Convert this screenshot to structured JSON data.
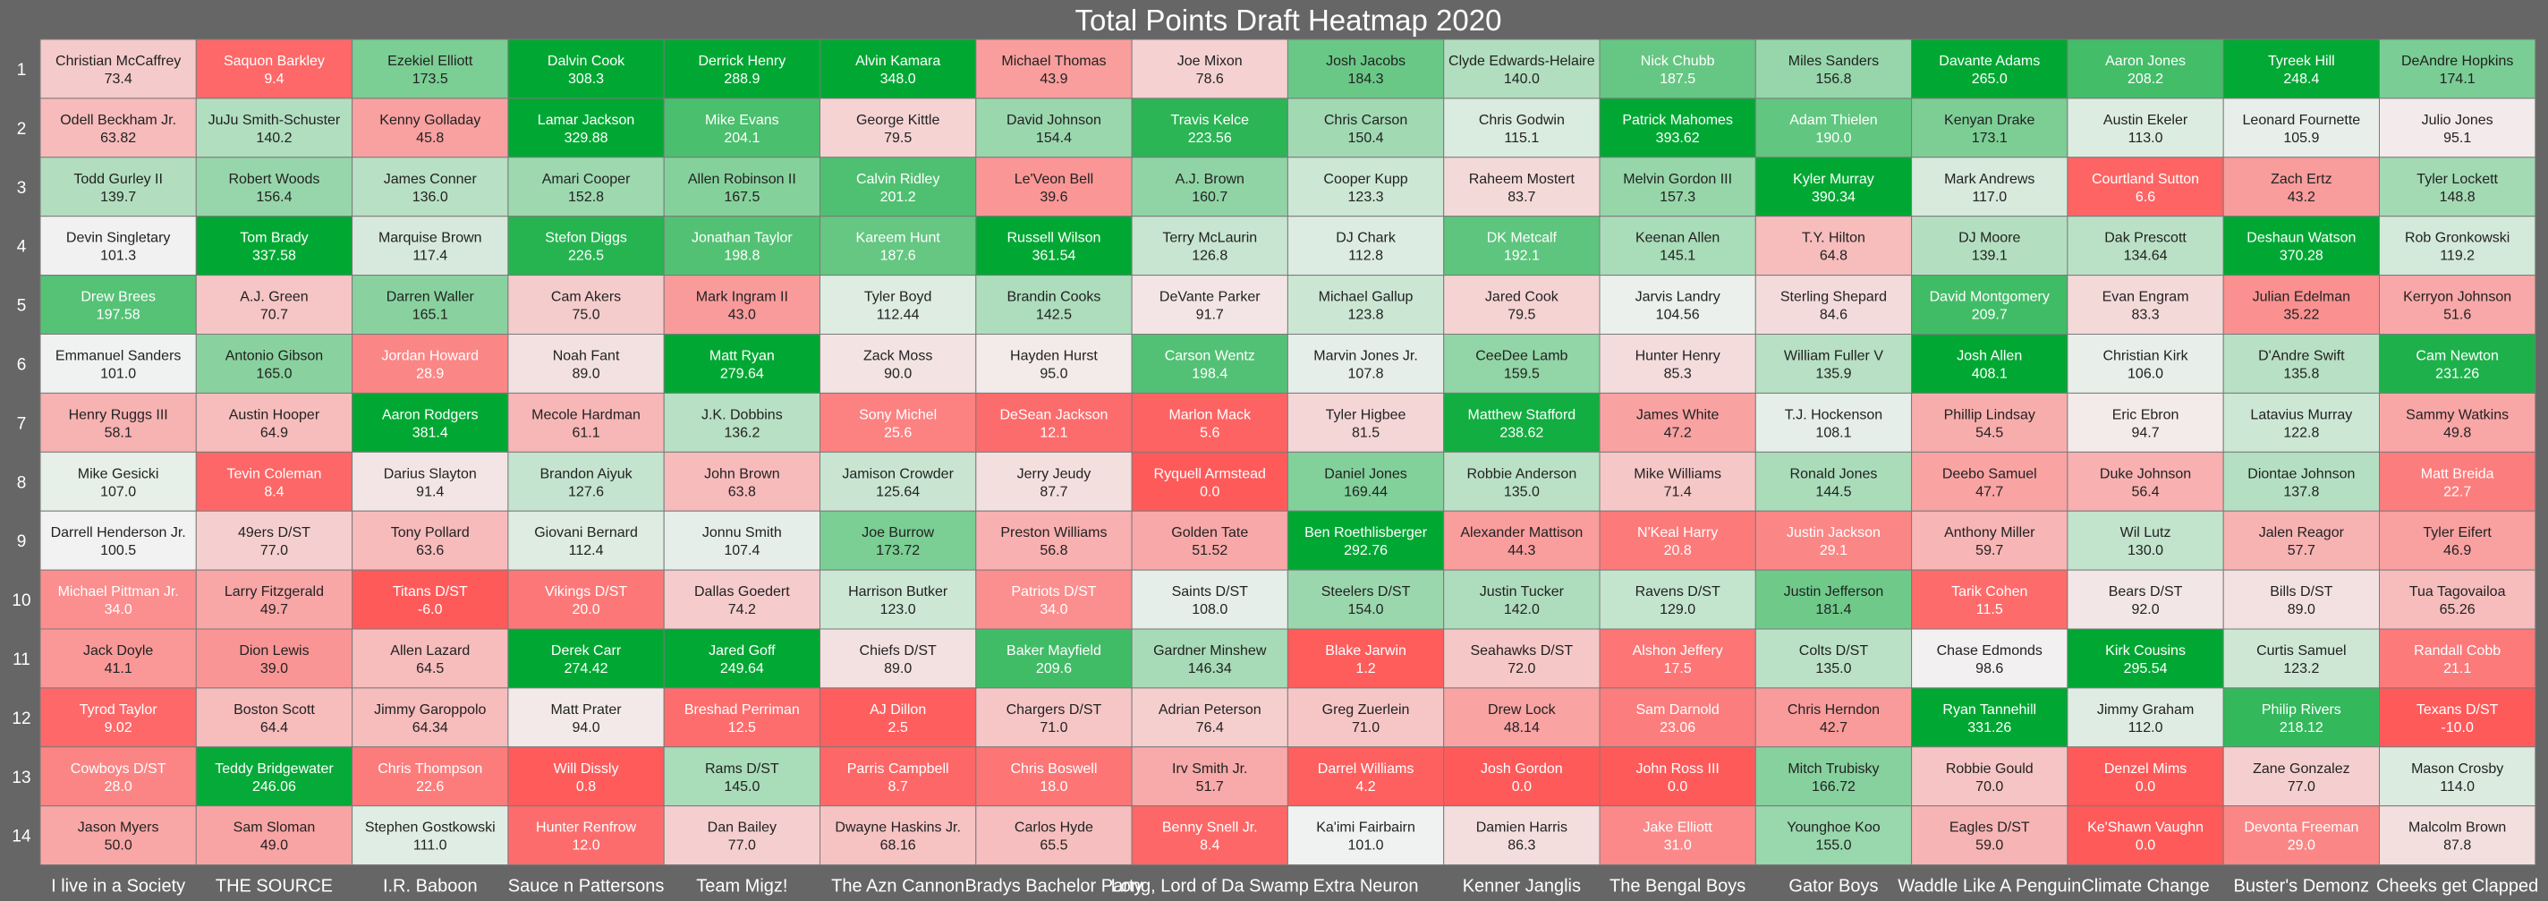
{
  "chart_data": {
    "type": "heatmap",
    "title": "Total Points Draft Heatmap 2020",
    "rows": [
      "1",
      "2",
      "3",
      "4",
      "5",
      "6",
      "7",
      "8",
      "9",
      "10",
      "11",
      "12",
      "13",
      "14"
    ],
    "columns": [
      "I live in a Society",
      "THE SOURCE",
      "I.R. Baboon",
      "Sauce n Pattersons",
      "Team Migz!",
      "The Azn Cannon",
      "Bradys Bachelor Party",
      "Long, Lord of Da Swamp",
      "Extra  Neuron",
      "Kenner Janglis",
      "The Bengal  Boys",
      "Gator  Boys",
      "Waddle Like A Penguin",
      "Climate Change",
      "Buster's Demonz",
      "Cheeks get  Clapped"
    ],
    "color_scale": {
      "low": "#ff5a5a",
      "mid": "#f2f2f2",
      "high": "#00a833",
      "vmin": 0,
      "vmid": 100,
      "vmax": 250
    },
    "cells": [
      [
        [
          "Christian McCaffrey",
          "73.4"
        ],
        [
          "Saquon Barkley",
          "9.4"
        ],
        [
          "Ezekiel Elliott",
          "173.5"
        ],
        [
          "Dalvin Cook",
          "308.3"
        ],
        [
          "Derrick Henry",
          "288.9"
        ],
        [
          "Alvin Kamara",
          "348.0"
        ],
        [
          "Michael Thomas",
          "43.9"
        ],
        [
          "Joe Mixon",
          "78.6"
        ],
        [
          "Josh Jacobs",
          "184.3"
        ],
        [
          "Clyde Edwards-Helaire",
          "140.0"
        ],
        [
          "Nick Chubb",
          "187.5"
        ],
        [
          "Miles Sanders",
          "156.8"
        ],
        [
          "Davante Adams",
          "265.0"
        ],
        [
          "Aaron Jones",
          "208.2"
        ],
        [
          "Tyreek Hill",
          "248.4"
        ],
        [
          "DeAndre Hopkins",
          "174.1"
        ]
      ],
      [
        [
          "Odell Beckham Jr.",
          "63.82"
        ],
        [
          "JuJu Smith-Schuster",
          "140.2"
        ],
        [
          "Kenny Golladay",
          "45.8"
        ],
        [
          "Lamar Jackson",
          "329.88"
        ],
        [
          "Mike Evans",
          "204.1"
        ],
        [
          "George Kittle",
          "79.5"
        ],
        [
          "David Johnson",
          "154.4"
        ],
        [
          "Travis Kelce",
          "223.56"
        ],
        [
          "Chris Carson",
          "150.4"
        ],
        [
          "Chris Godwin",
          "115.1"
        ],
        [
          "Patrick Mahomes",
          "393.62"
        ],
        [
          "Adam Thielen",
          "190.0"
        ],
        [
          "Kenyan Drake",
          "173.1"
        ],
        [
          "Austin Ekeler",
          "113.0"
        ],
        [
          "Leonard Fournette",
          "105.9"
        ],
        [
          "Julio Jones",
          "95.1"
        ]
      ],
      [
        [
          "Todd Gurley II",
          "139.7"
        ],
        [
          "Robert Woods",
          "156.4"
        ],
        [
          "James Conner",
          "136.0"
        ],
        [
          "Amari Cooper",
          "152.8"
        ],
        [
          "Allen Robinson II",
          "167.5"
        ],
        [
          "Calvin Ridley",
          "201.2"
        ],
        [
          "Le'Veon Bell",
          "39.6"
        ],
        [
          "A.J. Brown",
          "160.7"
        ],
        [
          "Cooper Kupp",
          "123.3"
        ],
        [
          "Raheem Mostert",
          "83.7"
        ],
        [
          "Melvin Gordon III",
          "157.3"
        ],
        [
          "Kyler Murray",
          "390.34"
        ],
        [
          "Mark Andrews",
          "117.0"
        ],
        [
          "Courtland Sutton",
          "6.6"
        ],
        [
          "Zach Ertz",
          "43.2"
        ],
        [
          "Tyler Lockett",
          "148.8"
        ]
      ],
      [
        [
          "Devin Singletary",
          "101.3"
        ],
        [
          "Tom Brady",
          "337.58"
        ],
        [
          "Marquise Brown",
          "117.4"
        ],
        [
          "Stefon Diggs",
          "226.5"
        ],
        [
          "Jonathan Taylor",
          "198.8"
        ],
        [
          "Kareem Hunt",
          "187.6"
        ],
        [
          "Russell Wilson",
          "361.54"
        ],
        [
          "Terry McLaurin",
          "126.8"
        ],
        [
          "DJ Chark",
          "112.8"
        ],
        [
          "DK Metcalf",
          "192.1"
        ],
        [
          "Keenan Allen",
          "145.1"
        ],
        [
          "T.Y. Hilton",
          "64.8"
        ],
        [
          "DJ Moore",
          "139.1"
        ],
        [
          "Dak Prescott",
          "134.64"
        ],
        [
          "Deshaun Watson",
          "370.28"
        ],
        [
          "Rob Gronkowski",
          "119.2"
        ]
      ],
      [
        [
          "Drew Brees",
          "197.58"
        ],
        [
          "A.J. Green",
          "70.7"
        ],
        [
          "Darren Waller",
          "165.1"
        ],
        [
          "Cam Akers",
          "75.0"
        ],
        [
          "Mark Ingram II",
          "43.0"
        ],
        [
          "Tyler Boyd",
          "112.44"
        ],
        [
          "Brandin Cooks",
          "142.5"
        ],
        [
          "DeVante Parker",
          "91.7"
        ],
        [
          "Michael Gallup",
          "123.8"
        ],
        [
          "Jared Cook",
          "79.5"
        ],
        [
          "Jarvis Landry",
          "104.56"
        ],
        [
          "Sterling Shepard",
          "84.6"
        ],
        [
          "David Montgomery",
          "209.7"
        ],
        [
          "Evan Engram",
          "83.3"
        ],
        [
          "Julian Edelman",
          "35.22"
        ],
        [
          "Kerryon Johnson",
          "51.6"
        ]
      ],
      [
        [
          "Emmanuel Sanders",
          "101.0"
        ],
        [
          "Antonio Gibson",
          "165.0"
        ],
        [
          "Jordan Howard",
          "28.9"
        ],
        [
          "Noah Fant",
          "89.0"
        ],
        [
          "Matt Ryan",
          "279.64"
        ],
        [
          "Zack Moss",
          "90.0"
        ],
        [
          "Hayden Hurst",
          "95.0"
        ],
        [
          "Carson Wentz",
          "198.4"
        ],
        [
          "Marvin Jones Jr.",
          "107.8"
        ],
        [
          "CeeDee Lamb",
          "159.5"
        ],
        [
          "Hunter Henry",
          "85.3"
        ],
        [
          "William Fuller V",
          "135.9"
        ],
        [
          "Josh Allen",
          "408.1"
        ],
        [
          "Christian Kirk",
          "106.0"
        ],
        [
          "D'Andre Swift",
          "135.8"
        ],
        [
          "Cam Newton",
          "231.26"
        ]
      ],
      [
        [
          "Henry Ruggs III",
          "58.1"
        ],
        [
          "Austin Hooper",
          "64.9"
        ],
        [
          "Aaron Rodgers",
          "381.4"
        ],
        [
          "Mecole Hardman",
          "61.1"
        ],
        [
          "J.K. Dobbins",
          "136.2"
        ],
        [
          "Sony Michel",
          "25.6"
        ],
        [
          "DeSean Jackson",
          "12.1"
        ],
        [
          "Marlon Mack",
          "5.6"
        ],
        [
          "Tyler Higbee",
          "81.5"
        ],
        [
          "Matthew Stafford",
          "238.62"
        ],
        [
          "James White",
          "47.2"
        ],
        [
          "T.J. Hockenson",
          "108.1"
        ],
        [
          "Phillip Lindsay",
          "54.5"
        ],
        [
          "Eric Ebron",
          "94.7"
        ],
        [
          "Latavius Murray",
          "122.8"
        ],
        [
          "Sammy Watkins",
          "49.8"
        ]
      ],
      [
        [
          "Mike Gesicki",
          "107.0"
        ],
        [
          "Tevin Coleman",
          "8.4"
        ],
        [
          "Darius Slayton",
          "91.4"
        ],
        [
          "Brandon Aiyuk",
          "127.6"
        ],
        [
          "John Brown",
          "63.8"
        ],
        [
          "Jamison Crowder",
          "125.64"
        ],
        [
          "Jerry Jeudy",
          "87.7"
        ],
        [
          "Ryquell Armstead",
          "0.0"
        ],
        [
          "Daniel Jones",
          "169.44"
        ],
        [
          "Robbie Anderson",
          "135.0"
        ],
        [
          "Mike Williams",
          "71.4"
        ],
        [
          "Ronald Jones",
          "144.5"
        ],
        [
          "Deebo Samuel",
          "47.7"
        ],
        [
          "Duke Johnson",
          "56.4"
        ],
        [
          "Diontae Johnson",
          "137.8"
        ],
        [
          "Matt Breida",
          "22.7"
        ]
      ],
      [
        [
          "Darrell Henderson Jr.",
          "100.5"
        ],
        [
          "49ers D/ST",
          "77.0"
        ],
        [
          "Tony Pollard",
          "63.6"
        ],
        [
          "Giovani Bernard",
          "112.4"
        ],
        [
          "Jonnu Smith",
          "107.4"
        ],
        [
          "Joe Burrow",
          "173.72"
        ],
        [
          "Preston Williams",
          "56.8"
        ],
        [
          "Golden Tate",
          "51.52"
        ],
        [
          "Ben Roethlisberger",
          "292.76"
        ],
        [
          "Alexander Mattison",
          "44.3"
        ],
        [
          "N'Keal Harry",
          "20.8"
        ],
        [
          "Justin Jackson",
          "29.1"
        ],
        [
          "Anthony Miller",
          "59.7"
        ],
        [
          "Wil Lutz",
          "130.0"
        ],
        [
          "Jalen Reagor",
          "57.7"
        ],
        [
          "Tyler Eifert",
          "46.9"
        ]
      ],
      [
        [
          "Michael Pittman Jr.",
          "34.0"
        ],
        [
          "Larry Fitzgerald",
          "49.7"
        ],
        [
          "Titans D/ST",
          "-6.0"
        ],
        [
          "Vikings D/ST",
          "20.0"
        ],
        [
          "Dallas Goedert",
          "74.2"
        ],
        [
          "Harrison Butker",
          "123.0"
        ],
        [
          "Patriots D/ST",
          "34.0"
        ],
        [
          "Saints D/ST",
          "108.0"
        ],
        [
          "Steelers D/ST",
          "154.0"
        ],
        [
          "Justin Tucker",
          "142.0"
        ],
        [
          "Ravens D/ST",
          "129.0"
        ],
        [
          "Justin Jefferson",
          "181.4"
        ],
        [
          "Tarik Cohen",
          "11.5"
        ],
        [
          "Bears D/ST",
          "92.0"
        ],
        [
          "Bills D/ST",
          "89.0"
        ],
        [
          "Tua Tagovailoa",
          "65.26"
        ]
      ],
      [
        [
          "Jack Doyle",
          "41.1"
        ],
        [
          "Dion Lewis",
          "39.0"
        ],
        [
          "Allen Lazard",
          "64.5"
        ],
        [
          "Derek Carr",
          "274.42"
        ],
        [
          "Jared Goff",
          "249.64"
        ],
        [
          "Chiefs D/ST",
          "89.0"
        ],
        [
          "Baker Mayfield",
          "209.6"
        ],
        [
          "Gardner Minshew",
          "146.34"
        ],
        [
          "Blake Jarwin",
          "1.2"
        ],
        [
          "Seahawks D/ST",
          "72.0"
        ],
        [
          "Alshon Jeffery",
          "17.5"
        ],
        [
          "Colts D/ST",
          "135.0"
        ],
        [
          "Chase Edmonds",
          "98.6"
        ],
        [
          "Kirk Cousins",
          "295.54"
        ],
        [
          "Curtis Samuel",
          "123.2"
        ],
        [
          "Randall Cobb",
          "21.1"
        ]
      ],
      [
        [
          "Tyrod Taylor",
          "9.02"
        ],
        [
          "Boston Scott",
          "64.4"
        ],
        [
          "Jimmy Garoppolo",
          "64.34"
        ],
        [
          "Matt Prater",
          "94.0"
        ],
        [
          "Breshad Perriman",
          "12.5"
        ],
        [
          "AJ Dillon",
          "2.5"
        ],
        [
          "Chargers D/ST",
          "71.0"
        ],
        [
          "Adrian Peterson",
          "76.4"
        ],
        [
          "Greg Zuerlein",
          "71.0"
        ],
        [
          "Drew Lock",
          "48.14"
        ],
        [
          "Sam Darnold",
          "23.06"
        ],
        [
          "Chris Herndon",
          "42.7"
        ],
        [
          "Ryan Tannehill",
          "331.26"
        ],
        [
          "Jimmy Graham",
          "112.0"
        ],
        [
          "Philip Rivers",
          "218.12"
        ],
        [
          "Texans D/ST",
          "-10.0"
        ]
      ],
      [
        [
          "Cowboys D/ST",
          "28.0"
        ],
        [
          "Teddy Bridgewater",
          "246.06"
        ],
        [
          "Chris Thompson",
          "22.6"
        ],
        [
          "Will Dissly",
          "0.8"
        ],
        [
          "Rams D/ST",
          "145.0"
        ],
        [
          "Parris Campbell",
          "8.7"
        ],
        [
          "Chris Boswell",
          "18.0"
        ],
        [
          "Irv Smith Jr.",
          "51.7"
        ],
        [
          "Darrel Williams",
          "4.2"
        ],
        [
          "Josh Gordon",
          "0.0"
        ],
        [
          "John Ross III",
          "0.0"
        ],
        [
          "Mitch Trubisky",
          "166.72"
        ],
        [
          "Robbie Gould",
          "70.0"
        ],
        [
          "Denzel Mims",
          "0.0"
        ],
        [
          "Zane Gonzalez",
          "77.0"
        ],
        [
          "Mason Crosby",
          "114.0"
        ]
      ],
      [
        [
          "Jason Myers",
          "50.0"
        ],
        [
          "Sam Sloman",
          "49.0"
        ],
        [
          "Stephen Gostkowski",
          "111.0"
        ],
        [
          "Hunter Renfrow",
          "12.0"
        ],
        [
          "Dan Bailey",
          "77.0"
        ],
        [
          "Dwayne Haskins Jr.",
          "68.16"
        ],
        [
          "Carlos Hyde",
          "65.5"
        ],
        [
          "Benny Snell Jr.",
          "8.4"
        ],
        [
          "Ka'imi Fairbairn",
          "101.0"
        ],
        [
          "Damien Harris",
          "86.3"
        ],
        [
          "Jake Elliott",
          "31.0"
        ],
        [
          "Younghoe Koo",
          "155.0"
        ],
        [
          "Eagles D/ST",
          "59.0"
        ],
        [
          "Ke'Shawn Vaughn",
          "0.0"
        ],
        [
          "Devonta Freeman",
          "29.0"
        ],
        [
          "Malcolm Brown",
          "87.8"
        ]
      ]
    ]
  }
}
